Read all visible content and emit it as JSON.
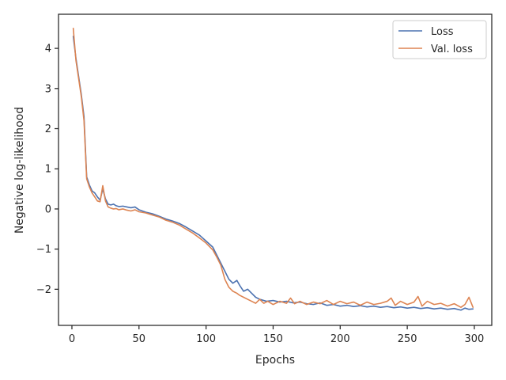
{
  "chart_data": {
    "type": "line",
    "xlabel": "Epochs",
    "ylabel": "Negative log-likelihood",
    "xlim": [
      -10,
      313
    ],
    "ylim": [
      -2.9,
      4.85
    ],
    "x_ticks": [
      0,
      50,
      100,
      150,
      200,
      250,
      300
    ],
    "y_ticks": [
      -2,
      -1,
      0,
      1,
      2,
      3,
      4
    ],
    "x_tick_labels": [
      "0",
      "50",
      "100",
      "150",
      "200",
      "250",
      "300"
    ],
    "y_tick_labels": [
      "−2",
      "−1",
      "0",
      "1",
      "2",
      "3",
      "4"
    ],
    "legend_position": "top-right",
    "grid": false,
    "series": [
      {
        "name": "Loss",
        "color": "#4c72b0",
        "points": [
          [
            1,
            4.3
          ],
          [
            3,
            3.75
          ],
          [
            5,
            3.3
          ],
          [
            7,
            2.85
          ],
          [
            9,
            2.3
          ],
          [
            11,
            0.8
          ],
          [
            13,
            0.6
          ],
          [
            15,
            0.45
          ],
          [
            17,
            0.4
          ],
          [
            19,
            0.3
          ],
          [
            21,
            0.22
          ],
          [
            23,
            0.5
          ],
          [
            25,
            0.25
          ],
          [
            27,
            0.12
          ],
          [
            29,
            0.1
          ],
          [
            31,
            0.12
          ],
          [
            33,
            0.08
          ],
          [
            35,
            0.06
          ],
          [
            38,
            0.07
          ],
          [
            41,
            0.05
          ],
          [
            44,
            0.03
          ],
          [
            47,
            0.05
          ],
          [
            50,
            -0.02
          ],
          [
            55,
            -0.08
          ],
          [
            60,
            -0.12
          ],
          [
            65,
            -0.18
          ],
          [
            70,
            -0.25
          ],
          [
            75,
            -0.3
          ],
          [
            80,
            -0.36
          ],
          [
            85,
            -0.45
          ],
          [
            90,
            -0.55
          ],
          [
            95,
            -0.65
          ],
          [
            100,
            -0.8
          ],
          [
            105,
            -0.95
          ],
          [
            108,
            -1.15
          ],
          [
            111,
            -1.35
          ],
          [
            114,
            -1.55
          ],
          [
            117,
            -1.75
          ],
          [
            120,
            -1.85
          ],
          [
            123,
            -1.78
          ],
          [
            125,
            -1.9
          ],
          [
            128,
            -2.05
          ],
          [
            131,
            -2.0
          ],
          [
            134,
            -2.1
          ],
          [
            137,
            -2.2
          ],
          [
            140,
            -2.25
          ],
          [
            145,
            -2.3
          ],
          [
            150,
            -2.28
          ],
          [
            155,
            -2.32
          ],
          [
            160,
            -2.3
          ],
          [
            165,
            -2.34
          ],
          [
            170,
            -2.32
          ],
          [
            175,
            -2.36
          ],
          [
            180,
            -2.38
          ],
          [
            185,
            -2.34
          ],
          [
            190,
            -2.4
          ],
          [
            195,
            -2.38
          ],
          [
            200,
            -2.42
          ],
          [
            205,
            -2.4
          ],
          [
            210,
            -2.43
          ],
          [
            215,
            -2.41
          ],
          [
            220,
            -2.44
          ],
          [
            225,
            -2.42
          ],
          [
            230,
            -2.45
          ],
          [
            235,
            -2.43
          ],
          [
            240,
            -2.46
          ],
          [
            245,
            -2.44
          ],
          [
            250,
            -2.47
          ],
          [
            255,
            -2.45
          ],
          [
            260,
            -2.48
          ],
          [
            265,
            -2.46
          ],
          [
            270,
            -2.49
          ],
          [
            275,
            -2.47
          ],
          [
            280,
            -2.5
          ],
          [
            285,
            -2.48
          ],
          [
            290,
            -2.52
          ],
          [
            293,
            -2.47
          ],
          [
            296,
            -2.5
          ],
          [
            299,
            -2.49
          ]
        ]
      },
      {
        "name": "Val. loss",
        "color": "#dd8452",
        "points": [
          [
            1,
            4.5
          ],
          [
            3,
            3.7
          ],
          [
            5,
            3.25
          ],
          [
            7,
            2.8
          ],
          [
            9,
            2.2
          ],
          [
            11,
            0.75
          ],
          [
            13,
            0.55
          ],
          [
            15,
            0.4
          ],
          [
            17,
            0.3
          ],
          [
            19,
            0.2
          ],
          [
            21,
            0.18
          ],
          [
            23,
            0.58
          ],
          [
            25,
            0.2
          ],
          [
            27,
            0.05
          ],
          [
            29,
            0.02
          ],
          [
            31,
            0.0
          ],
          [
            33,
            0.01
          ],
          [
            35,
            -0.02
          ],
          [
            38,
            0.0
          ],
          [
            41,
            -0.03
          ],
          [
            44,
            -0.05
          ],
          [
            47,
            -0.02
          ],
          [
            50,
            -0.07
          ],
          [
            55,
            -0.1
          ],
          [
            60,
            -0.15
          ],
          [
            65,
            -0.2
          ],
          [
            70,
            -0.28
          ],
          [
            75,
            -0.33
          ],
          [
            80,
            -0.4
          ],
          [
            85,
            -0.5
          ],
          [
            90,
            -0.6
          ],
          [
            95,
            -0.72
          ],
          [
            100,
            -0.85
          ],
          [
            105,
            -1.02
          ],
          [
            108,
            -1.2
          ],
          [
            111,
            -1.4
          ],
          [
            114,
            -1.75
          ],
          [
            117,
            -1.95
          ],
          [
            120,
            -2.05
          ],
          [
            123,
            -2.1
          ],
          [
            125,
            -2.15
          ],
          [
            128,
            -2.2
          ],
          [
            131,
            -2.25
          ],
          [
            134,
            -2.3
          ],
          [
            137,
            -2.35
          ],
          [
            140,
            -2.25
          ],
          [
            143,
            -2.35
          ],
          [
            146,
            -2.3
          ],
          [
            150,
            -2.38
          ],
          [
            155,
            -2.3
          ],
          [
            160,
            -2.35
          ],
          [
            163,
            -2.22
          ],
          [
            166,
            -2.36
          ],
          [
            170,
            -2.3
          ],
          [
            175,
            -2.38
          ],
          [
            180,
            -2.32
          ],
          [
            185,
            -2.36
          ],
          [
            190,
            -2.28
          ],
          [
            195,
            -2.38
          ],
          [
            200,
            -2.3
          ],
          [
            205,
            -2.36
          ],
          [
            210,
            -2.32
          ],
          [
            215,
            -2.4
          ],
          [
            220,
            -2.32
          ],
          [
            225,
            -2.38
          ],
          [
            230,
            -2.35
          ],
          [
            235,
            -2.3
          ],
          [
            238,
            -2.22
          ],
          [
            241,
            -2.4
          ],
          [
            245,
            -2.3
          ],
          [
            250,
            -2.38
          ],
          [
            255,
            -2.32
          ],
          [
            258,
            -2.18
          ],
          [
            261,
            -2.42
          ],
          [
            265,
            -2.3
          ],
          [
            270,
            -2.38
          ],
          [
            275,
            -2.35
          ],
          [
            280,
            -2.42
          ],
          [
            285,
            -2.36
          ],
          [
            290,
            -2.45
          ],
          [
            293,
            -2.38
          ],
          [
            296,
            -2.2
          ],
          [
            299,
            -2.45
          ]
        ]
      }
    ]
  }
}
